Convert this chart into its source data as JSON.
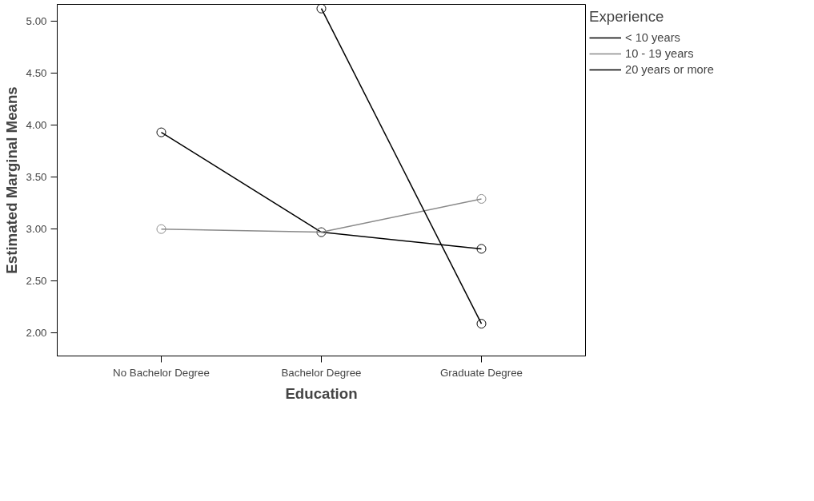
{
  "chart_data": {
    "type": "line",
    "xlabel": "Education",
    "ylabel": "Estimated Marginal Means",
    "legend_title": "Experience",
    "categories": [
      "No Bachelor Degree",
      "Bachelor Degree",
      "Graduate Degree"
    ],
    "series": [
      {
        "name": "< 10 years",
        "color": "#000000",
        "values": [
          3.93,
          2.97,
          2.81
        ]
      },
      {
        "name": "10 - 19 years",
        "color": "#8a8a8a",
        "values": [
          3.0,
          2.97,
          3.29
        ]
      },
      {
        "name": "20 years or more",
        "color": "#000000",
        "values": [
          null,
          5.12,
          2.09
        ]
      }
    ],
    "ylim": [
      1.78,
      5.16
    ],
    "yticks": [
      {
        "value": 2,
        "label": "2.00"
      },
      {
        "value": 2.5,
        "label": "2.50"
      },
      {
        "value": 3,
        "label": "3.00"
      },
      {
        "value": 3.5,
        "label": "3.50"
      },
      {
        "value": 4,
        "label": "4.00"
      },
      {
        "value": 4.5,
        "label": "4.50"
      },
      {
        "value": 5,
        "label": "5.00"
      }
    ],
    "marker": "circle",
    "grid": false,
    "legend": "top right"
  }
}
